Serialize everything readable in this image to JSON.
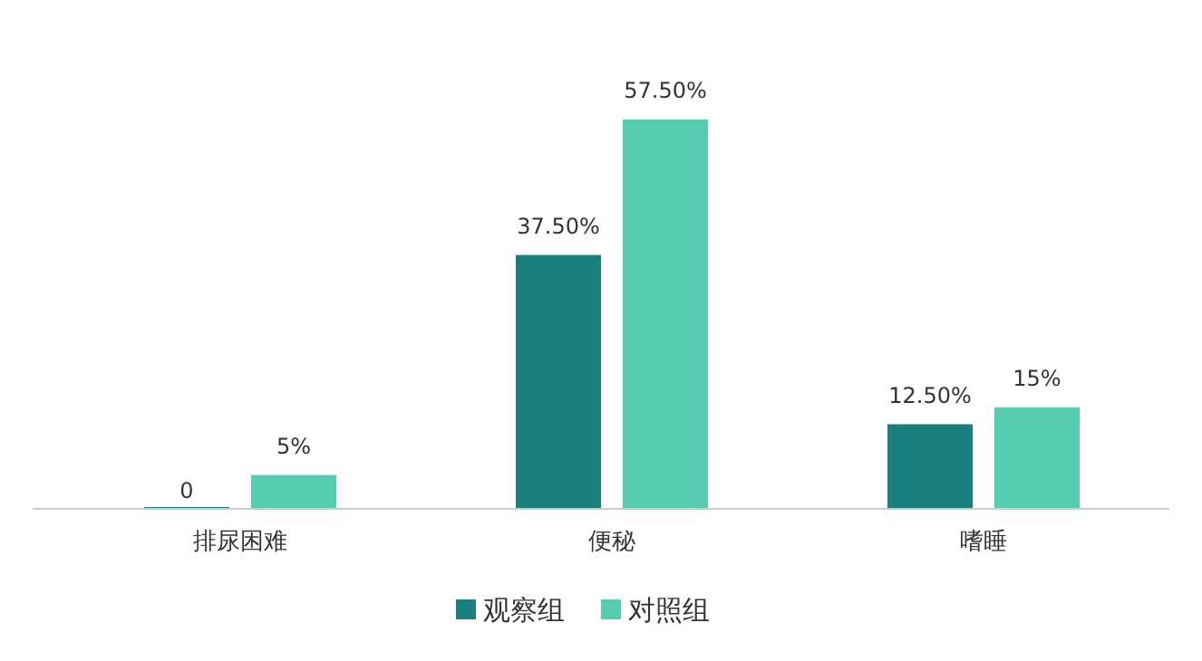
{
  "chart_data": {
    "type": "bar",
    "categories": [
      "排尿困难",
      "便秘",
      "嗜睡"
    ],
    "series": [
      {
        "name": "观察组",
        "color": "#1a7f7d",
        "values": [
          0,
          37.5,
          12.5
        ],
        "value_labels": [
          "0",
          "37.50%",
          "12.50%"
        ]
      },
      {
        "name": "对照组",
        "color": "#56cdb3",
        "values": [
          5,
          57.5,
          15
        ],
        "value_labels": [
          "5%",
          "57.50%",
          "15%"
        ]
      }
    ],
    "legend": "bottom"
  }
}
